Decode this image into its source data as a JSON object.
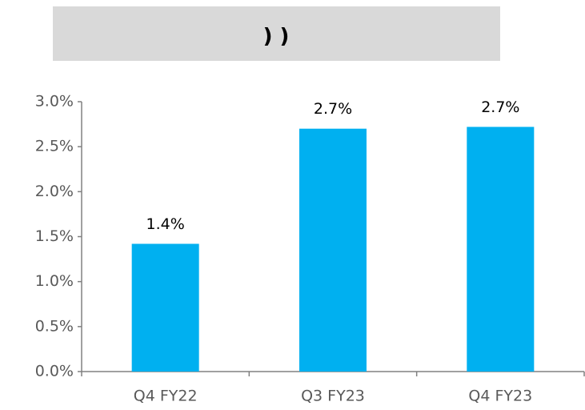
{
  "chart_data": {
    "type": "bar",
    "title": ") )",
    "categories": [
      "Q4 FY22",
      "Q3 FY23",
      "Q4 FY23"
    ],
    "values": [
      1.42,
      2.7,
      2.72
    ],
    "value_labels": [
      "1.4%",
      "2.7%",
      "2.7%"
    ],
    "color": "#00b0f0",
    "ylim": [
      0,
      3
    ],
    "yticks": [
      {
        "value": 0,
        "label": "0.0%"
      },
      {
        "value": 0.5,
        "label": "0.5%"
      },
      {
        "value": 1,
        "label": "1.0%"
      },
      {
        "value": 1.5,
        "label": "1.5%"
      },
      {
        "value": 2,
        "label": "2.0%"
      },
      {
        "value": 2.5,
        "label": "2.5%"
      },
      {
        "value": 3,
        "label": "3.0%"
      }
    ],
    "grid": false
  }
}
